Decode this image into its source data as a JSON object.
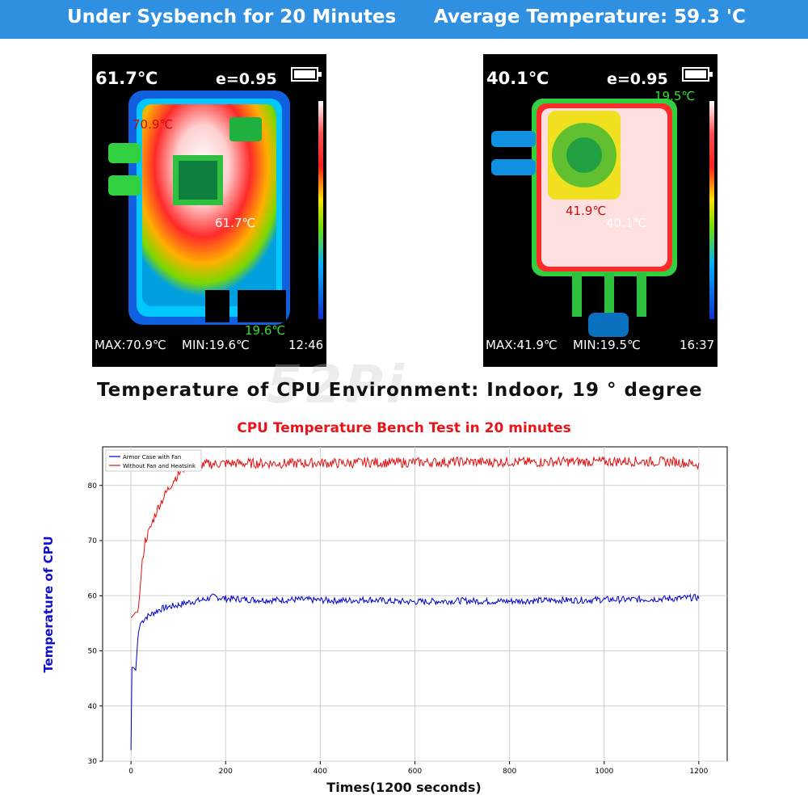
{
  "banner": {
    "left": "Under Sysbench for 20 Minutes",
    "right": "Average Temperature:  59.3 'C"
  },
  "thermal_left": {
    "top_temp": "61.7℃",
    "emissivity": "e=0.95",
    "spot_hot": "70.9℃",
    "spot_center": "61.7℃",
    "spot_cold": "19.6℃",
    "max": "MAX:70.9℃",
    "min": "MIN:19.6℃",
    "time": "12:46"
  },
  "thermal_right": {
    "top_temp": "40.1℃",
    "emissivity": "e=0.95",
    "spot_cold": "19.5℃",
    "spot_hot": "41.9℃",
    "spot_center": "40.1℃",
    "max": "MAX:41.9℃",
    "min": "MIN:19.5℃",
    "time": "16:37"
  },
  "environment_text": "Temperature of CPU Environment:  Indoor,  19 ° degree",
  "watermark": "52Pi",
  "chart_data": {
    "type": "line",
    "title": "CPU Temperature Bench Test in 20 minutes",
    "xlabel": "Times(1200 seconds)",
    "ylabel": "Temperature of CPU",
    "xlim": [
      -60,
      1260
    ],
    "ylim": [
      30,
      87
    ],
    "xticks": [
      0,
      200,
      400,
      600,
      800,
      1000,
      1200
    ],
    "yticks": [
      30,
      40,
      50,
      60,
      70,
      80
    ],
    "grid": true,
    "legend": "top-left",
    "series": [
      {
        "name": "Armor Case with Fan",
        "color": "#0000cc",
        "x": [
          0,
          1,
          2,
          5,
          10,
          15,
          20,
          30,
          40,
          60,
          80,
          100,
          120,
          150,
          175,
          200,
          250,
          300,
          350,
          400,
          450,
          500,
          550,
          600,
          650,
          700,
          750,
          800,
          850,
          900,
          950,
          1000,
          1050,
          1100,
          1150,
          1200
        ],
        "y": [
          32,
          44,
          47,
          47,
          46.5,
          53,
          55,
          56,
          56.5,
          57.5,
          58,
          58.3,
          58.8,
          59.2,
          59.8,
          59.5,
          59.3,
          59.2,
          59.3,
          59.2,
          59.1,
          59.3,
          59.0,
          58.9,
          59.0,
          59.1,
          59.0,
          59.0,
          59.1,
          59.2,
          59.2,
          59.3,
          59.3,
          59.4,
          59.5,
          59.7
        ]
      },
      {
        "name": "Without Fan and Heatsink",
        "color": "#e01010",
        "x": [
          0,
          5,
          10,
          15,
          20,
          25,
          30,
          40,
          50,
          60,
          70,
          80,
          90,
          100,
          110,
          120,
          150,
          200,
          250,
          300,
          350,
          400,
          450,
          500,
          550,
          600,
          650,
          700,
          750,
          800,
          850,
          900,
          950,
          1000,
          1050,
          1100,
          1150,
          1200
        ],
        "y": [
          56,
          56.5,
          57,
          57,
          62,
          67,
          70,
          72,
          74.5,
          76.5,
          78,
          79.5,
          81,
          82,
          83,
          83.5,
          83.8,
          84,
          84,
          84,
          84,
          84.1,
          84,
          84.2,
          84.1,
          84.2,
          84.2,
          84.3,
          84.2,
          84.3,
          84.2,
          84.3,
          84.3,
          84.3,
          84.4,
          84.3,
          84.3,
          83.8
        ]
      }
    ]
  }
}
